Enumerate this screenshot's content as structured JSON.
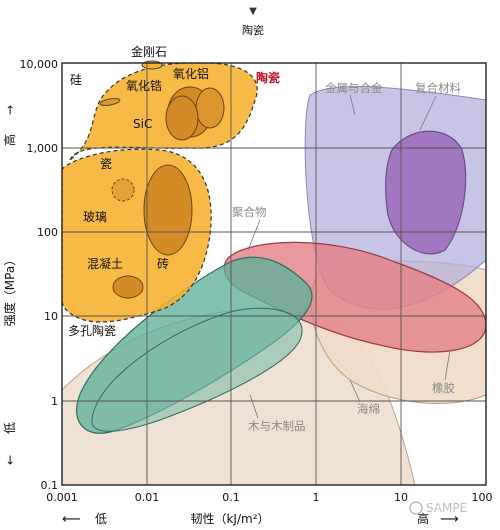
{
  "chart_data": {
    "type": "scatter",
    "x_scale": "log",
    "y_scale": "log",
    "xlim": [
      0.001,
      100
    ],
    "ylim": [
      0.1,
      10000
    ],
    "x_ticks": [
      "0.001",
      "0.01",
      "0.1",
      "1",
      "10",
      "100"
    ],
    "y_ticks": [
      "10,000",
      "1,000",
      "100",
      "10",
      "1",
      "0.1"
    ],
    "xlabel": "韧性（kJ/m²）",
    "ylabel": "强度（MPa）",
    "x_low": "低",
    "x_high": "高",
    "y_low": "低",
    "y_high": "高",
    "top_marker": "陶瓷",
    "grid": true,
    "regions": [
      {
        "label": "金属与合金",
        "color": "#a9a3d4",
        "x_range": [
          0.4,
          100
        ],
        "y_range": [
          6,
          5000
        ]
      },
      {
        "label": "复合材料",
        "color": "#9a6bb7",
        "x_range": [
          10,
          45
        ],
        "y_range": [
          60,
          1500
        ]
      },
      {
        "label": "聚合物",
        "color": "#e07f83",
        "x_range": [
          0.07,
          100
        ],
        "y_range": [
          3,
          90
        ]
      },
      {
        "label": "橡胶",
        "color": "#f0dbc6",
        "x_range": [
          1,
          100
        ],
        "y_range": [
          1,
          25
        ]
      },
      {
        "label": "木与木制品",
        "color": "#5fb09a",
        "x_range": [
          0.002,
          3
        ],
        "y_range": [
          0.5,
          60
        ]
      },
      {
        "label": "海绵",
        "color": "#ecdccd",
        "x_range": [
          0.001,
          15
        ],
        "y_range": [
          0.1,
          6
        ]
      },
      {
        "label": "陶瓷",
        "color": "#f6b12e",
        "x_range": [
          0.001,
          0.6
        ],
        "y_range": [
          6,
          10000
        ]
      }
    ],
    "ceramic_items": [
      {
        "label": "金刚石",
        "x": 0.009,
        "y": 9500
      },
      {
        "label": "硅",
        "x": 0.0025,
        "y": 4000
      },
      {
        "label": "氧化锆",
        "x": 0.05,
        "y": 3500
      },
      {
        "label": "氧化铝",
        "x": 0.1,
        "y": 3500
      },
      {
        "label": "SiC",
        "x": 0.035,
        "y": 1800
      },
      {
        "label": "瓷",
        "x": 0.004,
        "y": 400
      },
      {
        "label": "玻璃",
        "x": 0.006,
        "y": 140
      },
      {
        "label": "混凝土",
        "x": 0.005,
        "y": 25
      },
      {
        "label": "砖",
        "x": 0.05,
        "y": 120
      },
      {
        "label": "多孔陶瓷",
        "x": 0.005,
        "y": 8
      }
    ]
  },
  "watermark": "SAMPE"
}
